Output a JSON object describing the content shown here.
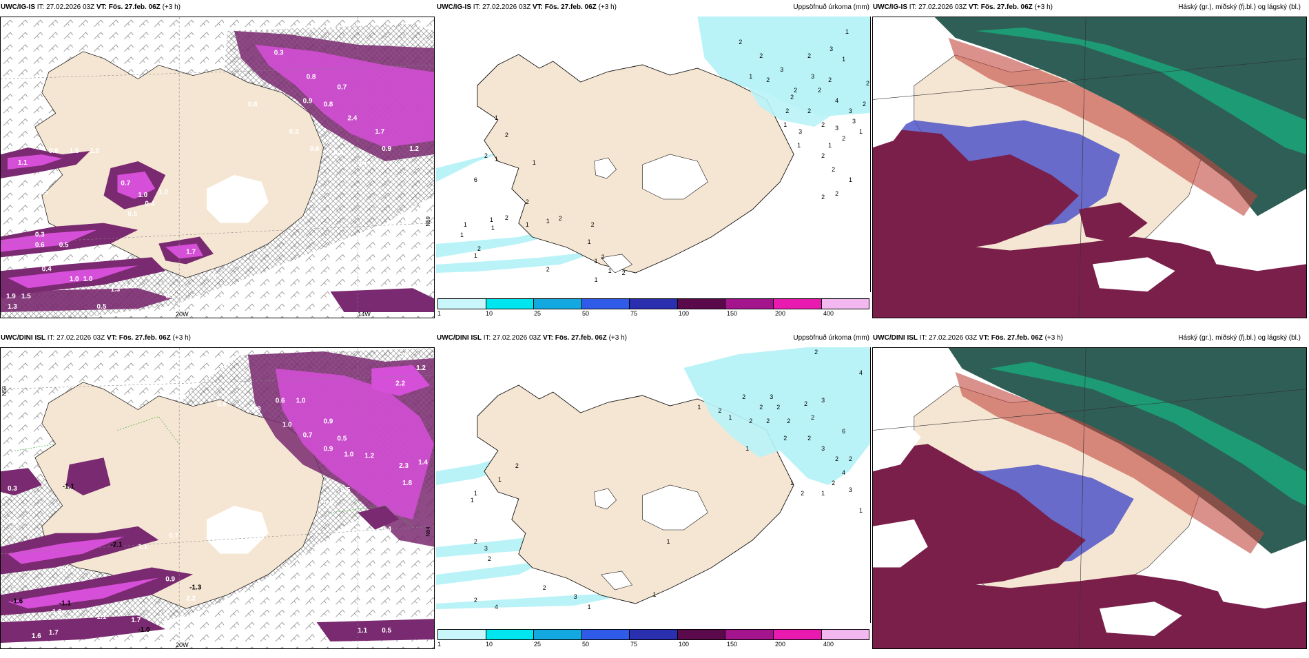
{
  "colors": {
    "land": "#f5e6d3",
    "precip_light": "#b9f3f7",
    "snow_purple": "#7a2a70",
    "snow_magenta": "#d64fd8",
    "cloud_high": "#2e5e55",
    "cloud_mid": "#7a1f4a",
    "cloud_low": "#5055c8",
    "colorbar": [
      "#c8f6fa",
      "#00e5ee",
      "#14a8e0",
      "#2f5be8",
      "#2a2fb0",
      "#5a0a4a",
      "#a4148c",
      "#e81ab0",
      "#f4b8f0"
    ]
  },
  "panels": [
    {
      "id": "top-left",
      "title_model": "UWC/IG-IS",
      "title_it": "IT: 27.02.2026 03Z",
      "title_vt_label": "VT:",
      "title_vt": "Fös. 27.feb. 06Z",
      "title_lead": "(+3 h)",
      "right_label": "",
      "lon_label": "20W",
      "lat_label": "N59",
      "lon_label2": "14W",
      "value_labels": [
        "0.4",
        "0.4",
        "0.3",
        "0.8",
        "0.7",
        "0.8",
        "0.9",
        "0.8",
        "2.4",
        "1.7",
        "1.2",
        "0.9",
        "0.7",
        "0.5",
        "0.3",
        "0.6",
        "0.6",
        "1.5",
        "1.0",
        "1.1",
        "1.5",
        "0.7",
        "1.0",
        "1.2",
        "0.4",
        "0.5",
        "1.7",
        "1.9",
        "0.3",
        "0.6",
        "0.5",
        "1.0",
        "1.0",
        "1.3",
        "1.2",
        "0.4",
        "0.5",
        "1.3",
        "1.5",
        "1.9",
        "0.5",
        "0.6",
        "0.8",
        "1.0"
      ]
    },
    {
      "id": "top-middle",
      "title_model": "UWC/IG-IS",
      "title_it": "IT: 27.02.2026 03Z",
      "title_vt_label": "VT:",
      "title_vt": "Fös. 27.feb. 06Z",
      "title_lead": "(+3 h)",
      "right_label": "Uppsöfnuð úrkoma (mm)",
      "colorbar_ticks": [
        "1",
        "10",
        "25",
        "50",
        "75",
        "100",
        "150",
        "200",
        "400"
      ],
      "value_labels": [
        "2",
        "1",
        "2",
        "3",
        "3",
        "2",
        "2",
        "2",
        "3",
        "2",
        "2",
        "4",
        "2",
        "2",
        "3",
        "2",
        "1",
        "2",
        "1",
        "1",
        "2",
        "2",
        "3",
        "2",
        "3",
        "2",
        "1",
        "2",
        "1",
        "2",
        "1",
        "1",
        "2",
        "1",
        "2",
        "1",
        "2",
        "1",
        "1",
        "1",
        "1",
        "1",
        "2",
        "2",
        "1",
        "2",
        "1",
        "1",
        "2",
        "2",
        "1",
        "1",
        "1",
        "2",
        "6",
        "2",
        "3",
        "2",
        "1"
      ]
    },
    {
      "id": "top-right",
      "title_model": "UWC/IG-IS",
      "title_it": "IT: 27.02.2026 03Z",
      "title_vt_label": "VT:",
      "title_vt": "Fös. 27.feb. 06Z",
      "title_lead": "(+3 h)",
      "right_label": "Háský (gr.), miðský (fj.bl.) og lágský (bl.)"
    },
    {
      "id": "bottom-left",
      "title_model": "UWC/DINI ISL",
      "title_it": "IT: 27.02.2026 03Z",
      "title_vt_label": "VT:",
      "title_vt": "Fös. 27.feb. 06Z",
      "title_lead": "(+3 h)",
      "right_label": "",
      "lon_label": "20W",
      "lat_label": "N59",
      "lat_label2": "N64",
      "value_labels": [
        "0.5",
        "1.2",
        "2.2",
        "0.5",
        "0.6",
        "1.0",
        "0.8",
        "0.7",
        "0.9",
        "1.0",
        "0.5",
        "0.9",
        "1.0",
        "1.2",
        "2.3",
        "1.8",
        "1.4",
        "0.5",
        "0.6",
        "0.4",
        "0.3",
        "-1.1",
        "1.4",
        "0.7",
        "-2.1",
        "1.1",
        "1.0",
        "0.9",
        "-1.3",
        "2.2",
        "-1.6",
        "-1.1",
        "1.2",
        "1.4",
        "1.7",
        "-1.0",
        "0.6",
        "1.1",
        "1.6",
        "1.7",
        "0.5",
        "1.1"
      ]
    },
    {
      "id": "bottom-middle",
      "title_model": "UWC/DINI ISL",
      "title_it": "IT: 27.02.2026 03Z",
      "title_vt_label": "VT:",
      "title_vt": "Fös. 27.feb. 06Z",
      "title_lead": "(+3 h)",
      "right_label": "Uppsöfnuð úrkoma (mm)",
      "colorbar_ticks": [
        "1",
        "10",
        "25",
        "50",
        "75",
        "100",
        "150",
        "200",
        "400"
      ],
      "value_labels": [
        "2",
        "4",
        "3",
        "2",
        "2",
        "2",
        "2",
        "3",
        "1",
        "2",
        "2",
        "2",
        "2",
        "2",
        "2",
        "3",
        "2",
        "4",
        "1",
        "2",
        "1",
        "1",
        "2",
        "1",
        "2",
        "2",
        "1",
        "1",
        "1",
        "2",
        "3",
        "2",
        "2",
        "3",
        "2",
        "4",
        "1",
        "1",
        "6",
        "2",
        "3",
        "1",
        "1"
      ]
    },
    {
      "id": "bottom-right",
      "title_model": "UWC/DINI ISL",
      "title_it": "IT: 27.02.2026 03Z",
      "title_vt_label": "VT:",
      "title_vt": "Fös. 27.feb. 06Z",
      "title_lead": "(+3 h)",
      "right_label": "Háský (gr.), miðský (fj.bl.) og lágský (bl.)"
    }
  ]
}
